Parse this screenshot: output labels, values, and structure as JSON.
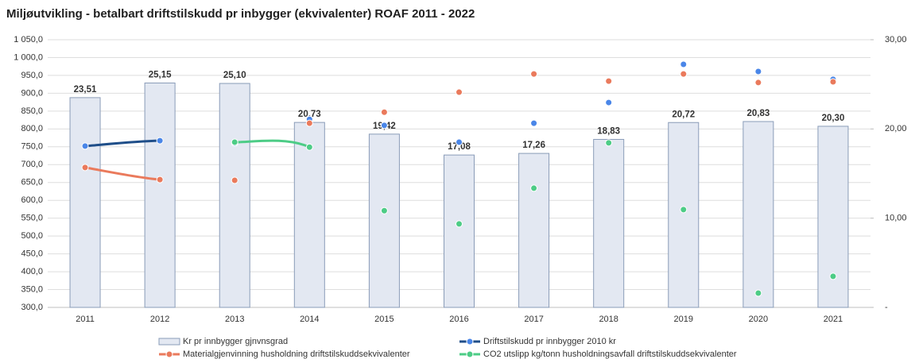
{
  "chart_data": {
    "type": "combo",
    "title": "Miljøutvikling - betalbart driftstilskudd pr inbygger (ekvivalenter) ROAF 2011 - 2022",
    "categories": [
      "2011",
      "2012",
      "2013",
      "2014",
      "2015",
      "2016",
      "2017",
      "2018",
      "2019",
      "2020",
      "2021"
    ],
    "ylim": [
      300,
      1050
    ],
    "yticks": [
      {
        "value": 300,
        "label": "300,0"
      },
      {
        "value": 350,
        "label": "350,0"
      },
      {
        "value": 400,
        "label": "400,0"
      },
      {
        "value": 450,
        "label": "450,0"
      },
      {
        "value": 500,
        "label": "500,0"
      },
      {
        "value": 550,
        "label": "550,0"
      },
      {
        "value": 600,
        "label": "600,0"
      },
      {
        "value": 650,
        "label": "650,0"
      },
      {
        "value": 700,
        "label": "700,0"
      },
      {
        "value": 750,
        "label": "750,0"
      },
      {
        "value": 800,
        "label": "800,0"
      },
      {
        "value": 850,
        "label": "850,0"
      },
      {
        "value": 900,
        "label": "900,0"
      },
      {
        "value": 950,
        "label": "950,0"
      },
      {
        "value": 1000,
        "label": "1 000,0"
      },
      {
        "value": 1050,
        "label": "1 050,0"
      }
    ],
    "y2lim": [
      0,
      30
    ],
    "y2ticks": [
      {
        "value": 0,
        "label": "-"
      },
      {
        "value": 10,
        "label": "10,00"
      },
      {
        "value": 20,
        "label": "20,00"
      },
      {
        "value": 30,
        "label": "30,00"
      }
    ],
    "grid": true,
    "legend": "bottom",
    "series": [
      {
        "name": "Kr pr innbygger gjnvnsgrad",
        "type": "bar",
        "axis": "y2",
        "color": "#e3e8f2",
        "values": [
          23.51,
          25.15,
          25.1,
          20.73,
          19.42,
          17.08,
          17.26,
          18.83,
          20.72,
          20.83,
          20.3
        ],
        "value_labels": [
          "23,51",
          "25,15",
          "25,10",
          "20,73",
          "19,42",
          "17,08",
          "17,26",
          "18,83",
          "20,72",
          "20,83",
          "20,30"
        ]
      },
      {
        "name": "Driftstilskudd pr innbygger 2010 kr",
        "type": "line",
        "color": "#1f4e89",
        "values": [
          752,
          767,
          760,
          827,
          810,
          763,
          816,
          874,
          981,
          961,
          939
        ]
      },
      {
        "name": "Materialgjenvinning husholdning driftstilskuddsekvivalenter",
        "type": "line",
        "color": "#ea7a5c",
        "values": [
          692,
          658,
          656,
          816,
          847,
          903,
          954,
          934,
          954,
          930,
          932
        ]
      },
      {
        "name": "CO2 utslipp kg/tonn husholdningsavfall driftstilskuddsekvivalenter",
        "type": "line",
        "color": "#4dcc86",
        "values": [
          null,
          null,
          763,
          749,
          571,
          534,
          634,
          761,
          574,
          340,
          387
        ]
      }
    ]
  }
}
